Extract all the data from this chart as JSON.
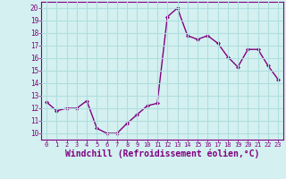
{
  "x": [
    0,
    1,
    2,
    3,
    4,
    5,
    6,
    7,
    8,
    9,
    10,
    11,
    12,
    13,
    14,
    15,
    16,
    17,
    18,
    19,
    20,
    21,
    22,
    23
  ],
  "y": [
    12.5,
    11.8,
    12.0,
    12.0,
    12.6,
    10.4,
    10.0,
    10.0,
    10.8,
    11.5,
    12.2,
    12.4,
    19.3,
    20.0,
    17.8,
    17.5,
    17.8,
    17.2,
    16.1,
    15.3,
    16.7,
    16.7,
    15.4,
    14.3
  ],
  "line_color": "#800080",
  "marker": "D",
  "marker_size": 2.0,
  "xlabel": "Windchill (Refroidissement éolien,°C)",
  "xlabel_fontsize": 7,
  "ylabel_ticks": [
    10,
    11,
    12,
    13,
    14,
    15,
    16,
    17,
    18,
    19,
    20
  ],
  "ylim": [
    9.5,
    20.5
  ],
  "xlim": [
    -0.5,
    23.5
  ],
  "xtick_labels": [
    "0",
    "1",
    "2",
    "3",
    "4",
    "5",
    "6",
    "7",
    "8",
    "9",
    "10",
    "11",
    "12",
    "13",
    "14",
    "15",
    "16",
    "17",
    "18",
    "19",
    "20",
    "21",
    "22",
    "23"
  ],
  "bg_color": "#d4f0f0",
  "grid_color": "#b0dede",
  "tick_color": "#800080",
  "label_color": "#800080",
  "linewidth": 1.0,
  "spine_color": "#800080"
}
